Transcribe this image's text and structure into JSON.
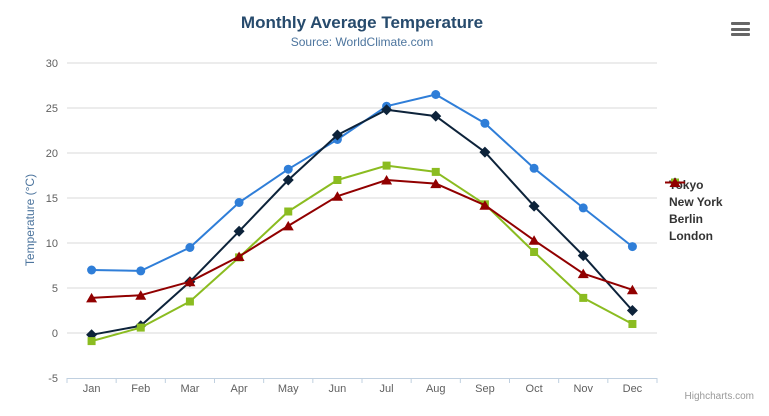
{
  "header": {
    "title": "Monthly Average Temperature",
    "subtitle": "Source: WorldClimate.com"
  },
  "credits": {
    "text": "Highcharts.com"
  },
  "chart_data": {
    "type": "line",
    "title": "Monthly Average Temperature",
    "subtitle": "Source: WorldClimate.com",
    "xlabel": "",
    "ylabel": "Temperature (°C)",
    "categories": [
      "Jan",
      "Feb",
      "Mar",
      "Apr",
      "May",
      "Jun",
      "Jul",
      "Aug",
      "Sep",
      "Oct",
      "Nov",
      "Dec"
    ],
    "ylim": [
      -5,
      30
    ],
    "ytick_step": 5,
    "grid": true,
    "legend_position": "right",
    "series": [
      {
        "name": "Tokyo",
        "color": "#2f7ed8",
        "marker": "circle",
        "values": [
          7.0,
          6.9,
          9.5,
          14.5,
          18.2,
          21.5,
          25.2,
          26.5,
          23.3,
          18.3,
          13.9,
          9.6
        ]
      },
      {
        "name": "New York",
        "color": "#0d233a",
        "marker": "diamond",
        "values": [
          -0.2,
          0.8,
          5.7,
          11.3,
          17.0,
          22.0,
          24.8,
          24.1,
          20.1,
          14.1,
          8.6,
          2.5
        ]
      },
      {
        "name": "Berlin",
        "color": "#8bbc21",
        "marker": "square",
        "values": [
          -0.9,
          0.6,
          3.5,
          8.4,
          13.5,
          17.0,
          18.6,
          17.9,
          14.3,
          9.0,
          3.9,
          1.0
        ]
      },
      {
        "name": "London",
        "color": "#910000",
        "marker": "triangle",
        "values": [
          3.9,
          4.2,
          5.7,
          8.5,
          11.9,
          15.2,
          17.0,
          16.6,
          14.2,
          10.3,
          6.6,
          4.8
        ]
      }
    ]
  },
  "colors": {
    "title": "#274b6d",
    "subtitle": "#4d759e",
    "axis_title": "#4d759e",
    "axis_labels": "#606060",
    "grid_line": "#d8d8d8",
    "axis_line": "#c0d0e0",
    "legend_text": "#333333",
    "credits": "#999999",
    "menu_icon": "#666666"
  }
}
